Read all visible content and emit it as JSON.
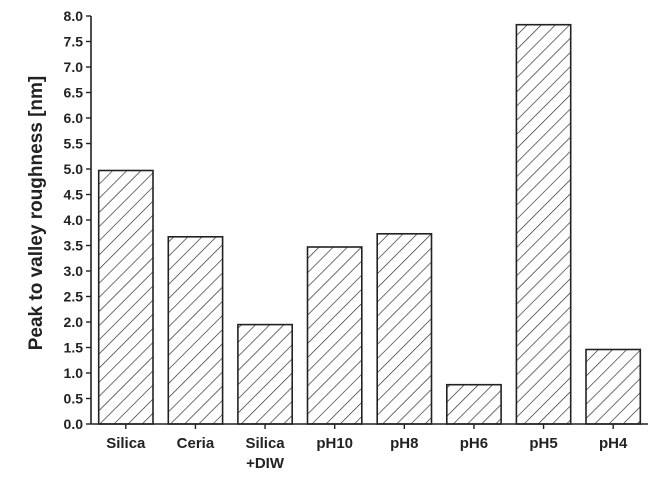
{
  "chart_data": {
    "type": "bar",
    "categories": [
      [
        "Silica"
      ],
      [
        "Ceria"
      ],
      [
        "Silica",
        "+DIW"
      ],
      [
        "pH10"
      ],
      [
        "pH8"
      ],
      [
        "pH6"
      ],
      [
        "pH5"
      ],
      [
        "pH4"
      ]
    ],
    "values": [
      4.97,
      3.67,
      1.95,
      3.47,
      3.73,
      0.77,
      7.83,
      1.46
    ],
    "ylabel": "Peak to valley roughness [nm]",
    "xlabel": "",
    "ylim": [
      0.0,
      8.0
    ],
    "yticks": [
      "0.0",
      "0.5",
      "1.0",
      "1.5",
      "2.0",
      "2.5",
      "3.0",
      "3.5",
      "4.0",
      "4.5",
      "5.0",
      "5.5",
      "6.0",
      "6.5",
      "7.0",
      "7.5",
      "8.0"
    ],
    "bar_fill": "diagonal-hatch",
    "bar_color": "#222222",
    "grid": false
  }
}
